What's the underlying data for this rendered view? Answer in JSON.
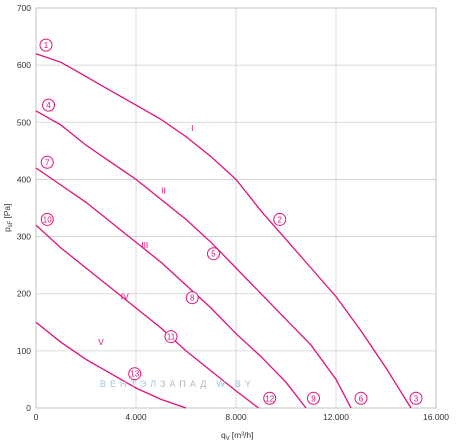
{
  "chart_data": {
    "type": "line",
    "xlabel": "q",
    "xlabel_sub": "V",
    "xlabel_unit": "[m³/h]",
    "ylabel": "p",
    "ylabel_sub": "sF",
    "ylabel_unit": "[Pa]",
    "xlim": [
      0,
      16000
    ],
    "ylim": [
      0,
      700
    ],
    "x_ticks": [
      0,
      4000,
      8000,
      12000,
      16000
    ],
    "x_tick_labels": [
      "0",
      "4.000",
      "8.000",
      "12.000",
      "16.000"
    ],
    "y_ticks": [
      0,
      100,
      200,
      300,
      400,
      500,
      600,
      700
    ],
    "y_tick_labels": [
      "0",
      "100",
      "200",
      "300",
      "400",
      "500",
      "600",
      "700"
    ],
    "grid": true,
    "series": [
      {
        "name": "I",
        "label_at": [
          6250,
          485
        ],
        "x": [
          0,
          1000,
          2000,
          3000,
          4000,
          5000,
          6000,
          7000,
          8000,
          9000,
          10000,
          11000,
          12000,
          13000,
          14000,
          15000
        ],
        "y": [
          620,
          605,
          580,
          555,
          530,
          505,
          475,
          440,
          400,
          345,
          295,
          245,
          195,
          135,
          70,
          0
        ]
      },
      {
        "name": "II",
        "label_at": [
          5100,
          375
        ],
        "x": [
          0,
          1000,
          2000,
          3000,
          4000,
          5000,
          6000,
          7000,
          8000,
          9000,
          10000,
          11000,
          12000,
          12600
        ],
        "y": [
          520,
          495,
          460,
          430,
          400,
          365,
          330,
          290,
          245,
          200,
          155,
          110,
          50,
          0
        ]
      },
      {
        "name": "III",
        "label_at": [
          4350,
          280
        ],
        "x": [
          0,
          1000,
          2000,
          3000,
          4000,
          5000,
          6000,
          7000,
          8000,
          9000,
          10000,
          10800
        ],
        "y": [
          420,
          390,
          360,
          325,
          290,
          255,
          215,
          175,
          130,
          90,
          45,
          0
        ]
      },
      {
        "name": "IV",
        "label_at": [
          3550,
          190
        ],
        "x": [
          0,
          1000,
          2000,
          3000,
          4000,
          5000,
          6000,
          7000,
          8000,
          8900
        ],
        "y": [
          320,
          280,
          245,
          210,
          175,
          140,
          100,
          65,
          30,
          0
        ]
      },
      {
        "name": "V",
        "label_at": [
          2600,
          110
        ],
        "x": [
          0,
          1000,
          2000,
          3000,
          4000,
          5000,
          6000
        ],
        "y": [
          150,
          115,
          85,
          60,
          35,
          15,
          0
        ]
      }
    ],
    "markers": [
      {
        "label": "1",
        "x": 400,
        "y": 635
      },
      {
        "label": "2",
        "x": 9750,
        "y": 330
      },
      {
        "label": "3",
        "x": 15200,
        "y": 17
      },
      {
        "label": "4",
        "x": 500,
        "y": 530
      },
      {
        "label": "5",
        "x": 7100,
        "y": 270
      },
      {
        "label": "6",
        "x": 13000,
        "y": 17
      },
      {
        "label": "7",
        "x": 450,
        "y": 430
      },
      {
        "label": "8",
        "x": 6250,
        "y": 193
      },
      {
        "label": "9",
        "x": 11100,
        "y": 17
      },
      {
        "label": "10",
        "x": 450,
        "y": 330
      },
      {
        "label": "11",
        "x": 5400,
        "y": 125
      },
      {
        "label": "12",
        "x": 9350,
        "y": 17
      },
      {
        "label": "13",
        "x": 3950,
        "y": 60
      }
    ]
  },
  "watermark": {
    "text_blue": "ВЕНТЭЛ",
    "text_grey": "ЗАПАД",
    "text_suffix": "W.BY",
    "color_blue": "#9fc3df",
    "color_grey": "#b9b9b9"
  },
  "colors": {
    "curve": "#e0117a",
    "grid": "#cfcfcf"
  }
}
